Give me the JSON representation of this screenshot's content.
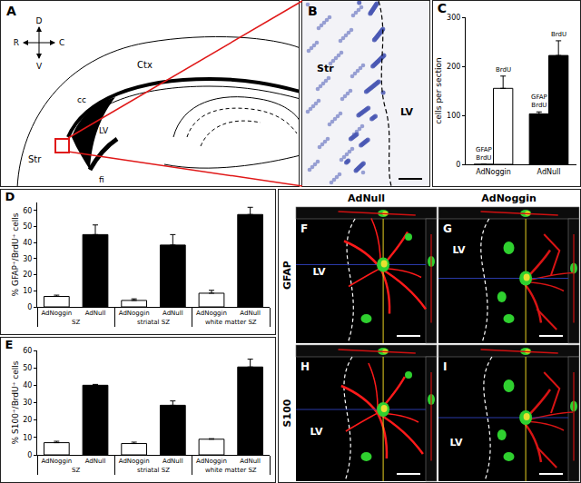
{
  "chart_data": [
    {
      "title": "C",
      "type": "bar",
      "ylabel": "cells per section",
      "categories": [
        "AdNoggin",
        "AdNull"
      ],
      "series": [
        {
          "name": "GFAP\nBrdU",
          "colors": [
            "#ffffff",
            "#000000"
          ],
          "values": [
            0,
            103
          ],
          "errors": [
            0,
            4
          ]
        },
        {
          "name": "BrdU",
          "colors": [
            "#ffffff",
            "#000000"
          ],
          "values": [
            155,
            222
          ],
          "errors": [
            25,
            30
          ]
        }
      ],
      "ylim": [
        0,
        300
      ],
      "yticks": [
        0,
        100,
        200,
        300
      ]
    },
    {
      "title": "D",
      "type": "bar",
      "ylabel": "% GFAP⁺/BrdU⁺ cells",
      "categories": [
        "SZ",
        "striatal SZ",
        "white matter SZ"
      ],
      "series": [
        {
          "name": "AdNoggin",
          "color": "#ffffff",
          "values": [
            6.5,
            4,
            8.5
          ],
          "errors": [
            0.8,
            1,
            1.8
          ]
        },
        {
          "name": "AdNull",
          "color": "#000000",
          "values": [
            45,
            38.5,
            57.5
          ],
          "errors": [
            6,
            6.5,
            4.5
          ]
        }
      ],
      "ylim": [
        0,
        65
      ],
      "yticks": [
        0,
        10,
        20,
        30,
        40,
        50,
        60
      ]
    },
    {
      "title": "E",
      "type": "bar",
      "ylabel": "% S100⁺/BrdU⁺ cells",
      "categories": [
        "SZ",
        "striatal SZ",
        "white matter SZ"
      ],
      "series": [
        {
          "name": "AdNoggin",
          "color": "#ffffff",
          "values": [
            7,
            6.5,
            9
          ],
          "errors": [
            0.8,
            0.8,
            0.3
          ]
        },
        {
          "name": "AdNull",
          "color": "#000000",
          "values": [
            40,
            28.5,
            50.5
          ],
          "errors": [
            0.5,
            2.5,
            4.5
          ]
        }
      ],
      "ylim": [
        0,
        60
      ],
      "yticks": [
        0,
        10,
        20,
        30,
        40,
        50,
        60
      ]
    }
  ],
  "figure_panels": {
    "panel_A": {
      "letter": "A",
      "compass": {
        "up": "D",
        "down": "V",
        "left": "R",
        "right": "C"
      },
      "regions": {
        "cortex": "Ctx",
        "corpus_callosum": "cc",
        "striatum": "Str",
        "ventricle": "LV",
        "fimbria": "fi"
      }
    },
    "panel_B": {
      "letter": "B",
      "regions": {
        "striatum": "Str",
        "ventricle": "LV"
      }
    },
    "panels_F_to_I": {
      "columns": [
        "AdNull",
        "AdNoggin"
      ],
      "rows": [
        "GFAP",
        "S100"
      ],
      "letters": [
        [
          "F",
          "G"
        ],
        [
          "H",
          "I"
        ]
      ],
      "ventricle": "LV"
    }
  }
}
